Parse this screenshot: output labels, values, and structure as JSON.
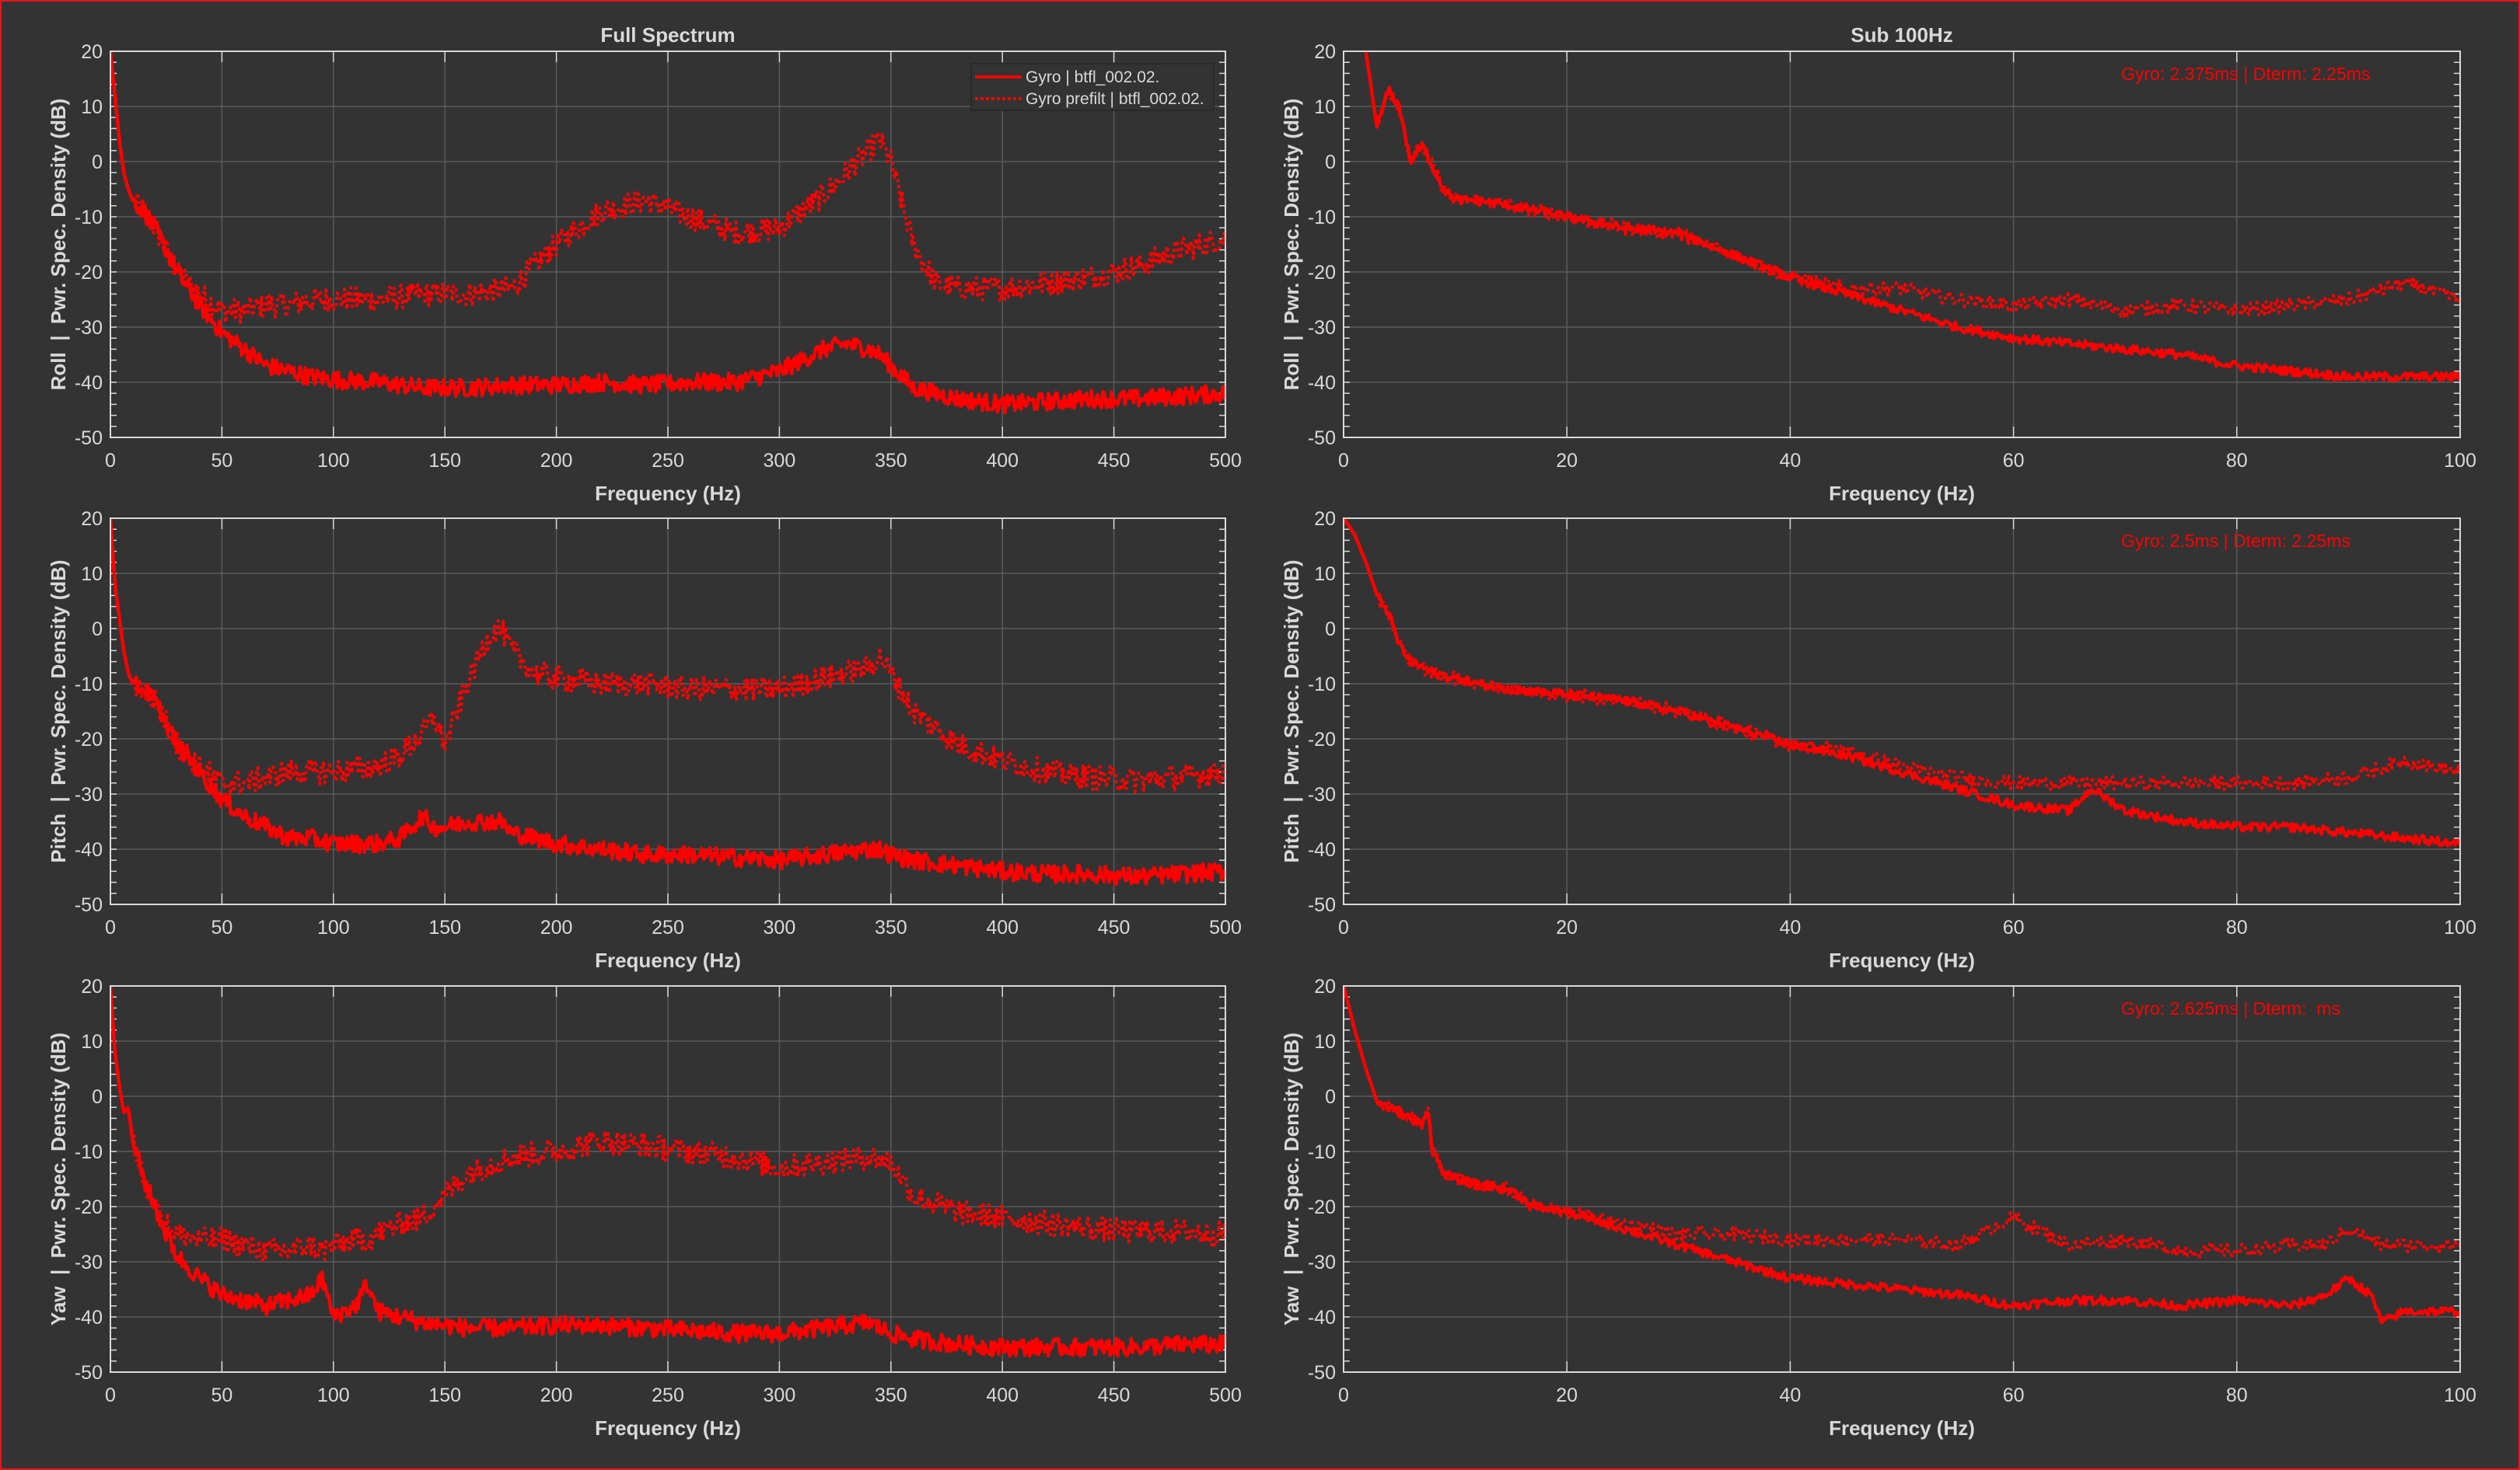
{
  "colors": {
    "background": "#333333",
    "axes": "#d9d9d9",
    "grid": "#5a5a5a",
    "series": "#ff0000",
    "frame": "#e8141b"
  },
  "chart_data": [
    {
      "id": "roll-full",
      "type": "line",
      "title": "Full Spectrum",
      "xlabel": "Frequency (Hz)",
      "ylabel": "Roll  |  Pwr. Spec. Density (dB)",
      "xlim": [
        0,
        500
      ],
      "ylim": [
        -50,
        20
      ],
      "xticks": [
        "0",
        "50",
        "100",
        "150",
        "200",
        "250",
        "300",
        "350",
        "400",
        "450",
        "500"
      ],
      "yticks": [
        "20",
        "10",
        "0",
        "-10",
        "-20",
        "-30",
        "-40",
        "-50"
      ],
      "grid": true,
      "legend": {
        "placement": "top-right",
        "entries": [
          "Gyro | btfl_002.02.",
          "Gyro prefilt | btfl_002.02."
        ]
      },
      "x": [
        0,
        2,
        4,
        6,
        8,
        10,
        15,
        20,
        25,
        30,
        40,
        50,
        60,
        70,
        80,
        90,
        100,
        120,
        140,
        160,
        180,
        200,
        220,
        240,
        260,
        280,
        300,
        320,
        330,
        340,
        345,
        350,
        360,
        370,
        380,
        400,
        420,
        440,
        460,
        480,
        500
      ],
      "series": [
        {
          "name": "Gyro | btfl_002.02.",
          "style": "solid",
          "values": [
            20,
            12,
            4,
            -2,
            -5,
            -7,
            -9,
            -12,
            -16,
            -20,
            -26,
            -31,
            -34,
            -37,
            -38,
            -39,
            -39.5,
            -40,
            -41,
            -41,
            -40.5,
            -40.5,
            -40,
            -40.5,
            -40,
            -40,
            -38,
            -34,
            -33,
            -34,
            -35,
            -37,
            -41,
            -42,
            -43,
            -44,
            -43.5,
            -43,
            -43,
            -42.5,
            -42
          ]
        },
        {
          "name": "Gyro prefilt | btfl_002.02.",
          "style": "dotted",
          "values": [
            20,
            12,
            4,
            -2,
            -5,
            -7,
            -9,
            -12,
            -16,
            -20,
            -24,
            -27,
            -27,
            -26,
            -26,
            -25,
            -25,
            -25,
            -24,
            -24,
            -23,
            -15,
            -9,
            -7,
            -10,
            -13,
            -12,
            -6,
            -2,
            2,
            4,
            0,
            -15,
            -22,
            -23,
            -23,
            -22,
            -21,
            -19,
            -16,
            -14
          ]
        }
      ]
    },
    {
      "id": "roll-sub",
      "type": "line",
      "title": "Sub 100Hz",
      "annotation": "Gyro: 2.375ms | Dterm: 2.25ms",
      "xlabel": "Frequency (Hz)",
      "ylabel": "Roll  |  Pwr. Spec. Density (dB)",
      "xlim": [
        0,
        100
      ],
      "ylim": [
        -50,
        20
      ],
      "xticks": [
        "0",
        "20",
        "40",
        "60",
        "80",
        "100"
      ],
      "yticks": [
        "20",
        "10",
        "0",
        "-10",
        "-20",
        "-30",
        "-40",
        "-50"
      ],
      "grid": true,
      "x": [
        2,
        3,
        4,
        5,
        6,
        7,
        8,
        9,
        10,
        12,
        15,
        20,
        25,
        30,
        35,
        40,
        45,
        50,
        55,
        60,
        65,
        70,
        75,
        80,
        85,
        90,
        95,
        100
      ],
      "series": [
        {
          "name": "Gyro",
          "style": "solid",
          "values": [
            20,
            6,
            13,
            10,
            0,
            3,
            -1,
            -5,
            -7,
            -7,
            -8,
            -10,
            -12,
            -13,
            -17,
            -21,
            -24,
            -27,
            -30,
            -32,
            -33,
            -34,
            -35,
            -37,
            -38,
            -39,
            -39,
            -39
          ]
        },
        {
          "name": "Gyro prefilt",
          "style": "dotted",
          "values": [
            20,
            6,
            13,
            10,
            0,
            3,
            -1,
            -5,
            -7,
            -7,
            -8,
            -10,
            -12,
            -13,
            -17,
            -21,
            -23,
            -23,
            -25,
            -26,
            -25,
            -27,
            -26,
            -27,
            -26,
            -25,
            -22,
            -25
          ]
        }
      ]
    },
    {
      "id": "pitch-full",
      "type": "line",
      "title": "",
      "xlabel": "Frequency (Hz)",
      "ylabel": "Pitch  |  Pwr. Spec. Density (dB)",
      "xlim": [
        0,
        500
      ],
      "ylim": [
        -50,
        20
      ],
      "xticks": [
        "0",
        "50",
        "100",
        "150",
        "200",
        "250",
        "300",
        "350",
        "400",
        "450",
        "500"
      ],
      "yticks": [
        "20",
        "10",
        "0",
        "-10",
        "-20",
        "-30",
        "-40",
        "-50"
      ],
      "grid": true,
      "x": [
        0,
        2,
        4,
        6,
        8,
        10,
        15,
        20,
        25,
        30,
        40,
        50,
        60,
        70,
        80,
        90,
        100,
        120,
        130,
        140,
        145,
        150,
        160,
        170,
        175,
        180,
        190,
        200,
        220,
        240,
        260,
        280,
        300,
        320,
        340,
        345,
        350,
        360,
        380,
        400,
        420,
        440,
        460,
        480,
        500
      ],
      "series": [
        {
          "name": "Gyro",
          "style": "solid",
          "values": [
            20,
            8,
            2,
            -4,
            -8,
            -10,
            -11,
            -13,
            -17,
            -21,
            -26,
            -31,
            -34,
            -36,
            -38,
            -38,
            -39,
            -39,
            -38,
            -34,
            -36,
            -36,
            -35,
            -35,
            -35,
            -37,
            -38,
            -39,
            -40,
            -41,
            -41,
            -41.5,
            -42,
            -41,
            -40,
            -40,
            -41,
            -42,
            -43,
            -44,
            -44.5,
            -44.5,
            -45,
            -44.5,
            -44
          ]
        },
        {
          "name": "Gyro prefilt",
          "style": "dotted",
          "values": [
            20,
            8,
            2,
            -4,
            -8,
            -10,
            -11,
            -13,
            -17,
            -21,
            -25,
            -28,
            -28,
            -27,
            -26,
            -26,
            -26,
            -25,
            -23,
            -19,
            -16,
            -21,
            -10,
            -1,
            0,
            -4,
            -8,
            -9,
            -10,
            -10,
            -11,
            -11,
            -11,
            -9,
            -7,
            -5,
            -8,
            -15,
            -21,
            -24,
            -26,
            -27,
            -27.5,
            -27,
            -26
          ]
        }
      ]
    },
    {
      "id": "pitch-sub",
      "type": "line",
      "title": "",
      "annotation": "Gyro: 2.5ms | Dterm: 2.25ms",
      "xlabel": "Frequency (Hz)",
      "ylabel": "Pitch  |  Pwr. Spec. Density (dB)",
      "xlim": [
        0,
        100
      ],
      "ylim": [
        -50,
        20
      ],
      "xticks": [
        "0",
        "20",
        "40",
        "60",
        "80",
        "100"
      ],
      "yticks": [
        "20",
        "10",
        "0",
        "-10",
        "-20",
        "-30",
        "-40",
        "-50"
      ],
      "grid": true,
      "x": [
        0,
        1,
        2,
        3,
        4,
        5,
        6,
        7,
        8,
        10,
        12,
        15,
        20,
        25,
        30,
        35,
        40,
        45,
        50,
        55,
        60,
        65,
        67,
        70,
        75,
        80,
        85,
        90,
        95,
        100
      ],
      "series": [
        {
          "name": "Gyro",
          "style": "solid",
          "values": [
            20,
            17,
            12,
            6,
            3,
            -3,
            -6,
            -7,
            -8,
            -9,
            -10,
            -11,
            -12,
            -13,
            -15,
            -18,
            -21,
            -23,
            -26,
            -29,
            -32,
            -33,
            -29,
            -33,
            -35,
            -36,
            -36,
            -37,
            -38,
            -39
          ]
        },
        {
          "name": "Gyro prefilt",
          "style": "dotted",
          "values": [
            20,
            17,
            12,
            6,
            3,
            -3,
            -6,
            -7,
            -8,
            -9,
            -10,
            -11,
            -12,
            -13,
            -15,
            -18,
            -21,
            -22,
            -25,
            -27,
            -28,
            -28,
            -28,
            -28,
            -28,
            -28,
            -28,
            -27,
            -24,
            -26
          ]
        }
      ]
    },
    {
      "id": "yaw-full",
      "type": "line",
      "title": "",
      "xlabel": "Frequency (Hz)",
      "ylabel": "Yaw  |  Pwr. Spec. Density (dB)",
      "xlim": [
        0,
        500
      ],
      "ylim": [
        -50,
        20
      ],
      "xticks": [
        "0",
        "50",
        "100",
        "150",
        "200",
        "250",
        "300",
        "350",
        "400",
        "450",
        "500"
      ],
      "yticks": [
        "20",
        "10",
        "0",
        "-10",
        "-20",
        "-30",
        "-40",
        "-50"
      ],
      "grid": true,
      "x": [
        0,
        2,
        4,
        6,
        8,
        10,
        15,
        20,
        25,
        30,
        40,
        50,
        60,
        70,
        80,
        90,
        95,
        100,
        110,
        115,
        120,
        130,
        140,
        150,
        160,
        180,
        200,
        220,
        240,
        260,
        280,
        300,
        320,
        340,
        350,
        360,
        380,
        400,
        420,
        440,
        460,
        480,
        500
      ],
      "series": [
        {
          "name": "Gyro",
          "style": "solid",
          "values": [
            20,
            8,
            2,
            -3,
            -2,
            -8,
            -15,
            -20,
            -25,
            -29,
            -33,
            -36,
            -37,
            -38,
            -37,
            -36,
            -33,
            -40,
            -38,
            -34,
            -39,
            -40,
            -41,
            -41.5,
            -42,
            -42,
            -41.5,
            -41.5,
            -42,
            -42.5,
            -43,
            -43,
            -42,
            -41,
            -43,
            -44,
            -45,
            -45.5,
            -45.5,
            -45.5,
            -45.5,
            -45,
            -45
          ]
        },
        {
          "name": "Gyro prefilt",
          "style": "dotted",
          "values": [
            20,
            8,
            2,
            -3,
            -2,
            -8,
            -15,
            -20,
            -23,
            -25,
            -26,
            -26,
            -27,
            -28,
            -28,
            -27,
            -28,
            -27,
            -26,
            -26,
            -25,
            -23,
            -22,
            -18,
            -14,
            -11,
            -10,
            -8,
            -9,
            -10,
            -11,
            -13,
            -12,
            -11,
            -12,
            -18,
            -21,
            -22,
            -23,
            -24,
            -24.5,
            -24.5,
            -25
          ]
        }
      ]
    },
    {
      "id": "yaw-sub",
      "type": "line",
      "title": "",
      "annotation": "Gyro: 2.625ms | Dterm:  ms",
      "xlabel": "Frequency (Hz)",
      "ylabel": "Yaw  |  Pwr. Spec. Density (dB)",
      "xlim": [
        0,
        100
      ],
      "ylim": [
        -50,
        20
      ],
      "xticks": [
        "0",
        "20",
        "40",
        "60",
        "80",
        "100"
      ],
      "yticks": [
        "20",
        "10",
        "0",
        "-10",
        "-20",
        "-30",
        "-40",
        "-50"
      ],
      "grid": true,
      "x": [
        0,
        1,
        2,
        3,
        4,
        5,
        6,
        7,
        7.5,
        8,
        9,
        10,
        12,
        15,
        17,
        20,
        25,
        30,
        35,
        40,
        45,
        50,
        55,
        60,
        65,
        70,
        75,
        80,
        85,
        88,
        90,
        92,
        93,
        95,
        100
      ],
      "series": [
        {
          "name": "Gyro",
          "style": "solid",
          "values": [
            20,
            12,
            5,
            -1,
            -2,
            -3,
            -4,
            -5,
            -2,
            -10,
            -14,
            -15,
            -16,
            -17,
            -20,
            -21,
            -24,
            -27,
            -30,
            -33,
            -34,
            -35,
            -36,
            -38,
            -37,
            -37,
            -38,
            -37,
            -38,
            -36,
            -33,
            -36,
            -41,
            -39,
            -39
          ]
        },
        {
          "name": "Gyro prefilt",
          "style": "dotted",
          "values": [
            20,
            12,
            5,
            -1,
            -2,
            -3,
            -4,
            -5,
            -2,
            -10,
            -14,
            -15,
            -16,
            -17,
            -20,
            -21,
            -23,
            -25,
            -25,
            -26,
            -26,
            -26,
            -27,
            -22,
            -27,
            -26,
            -28,
            -28,
            -27,
            -27,
            -24,
            -26,
            -27,
            -27,
            -27
          ]
        }
      ]
    }
  ]
}
